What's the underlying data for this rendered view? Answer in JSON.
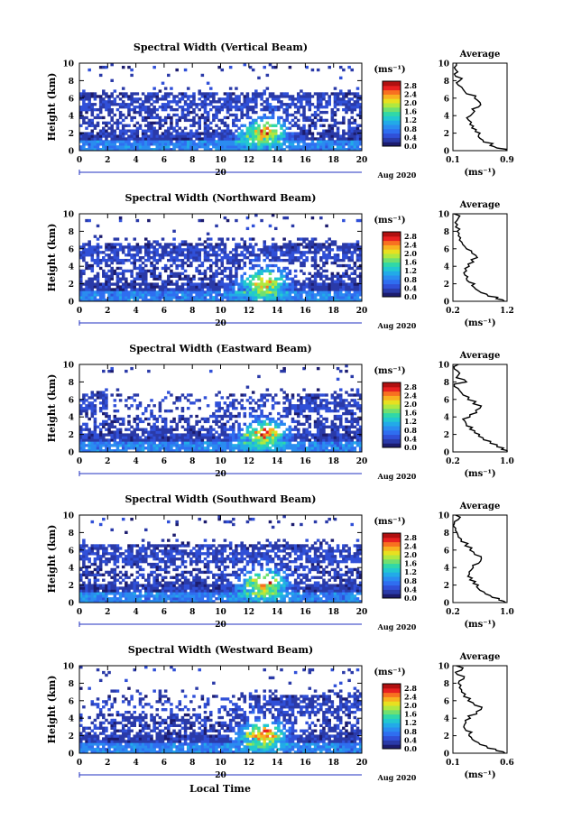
{
  "figure": {
    "xlabel": "Local Time",
    "date_label": "Aug 2020",
    "day_label": "20",
    "unit_label": "(ms⁻¹)",
    "avg_title": "Average",
    "avg_xlabel": "(ms⁻¹)",
    "ylabel": "Height (km)",
    "colors": [
      "#1c1c6e",
      "#2a3aa8",
      "#3050d8",
      "#2f6ef0",
      "#2a8cf0",
      "#22aae8",
      "#22c8d0",
      "#30d8a8",
      "#70e070",
      "#b0e840",
      "#e8e020",
      "#f8b020",
      "#f87020",
      "#e82020",
      "#b01010"
    ]
  },
  "chart_data": [
    {
      "type": "heatmap",
      "title": "Spectral Width (Vertical Beam)",
      "ylabel": "Height (km)",
      "xlabel": "Local Time",
      "xlim": [
        0,
        20
      ],
      "ylim": [
        0,
        10
      ],
      "xticks": [
        "0",
        "2",
        "4",
        "6",
        "8",
        "10",
        "12",
        "14",
        "16",
        "18",
        "20"
      ],
      "yticks": [
        "0",
        "2",
        "4",
        "6",
        "8",
        "10"
      ],
      "colorbar_ticks": [
        "0.0",
        "0.4",
        "0.8",
        "1.2",
        "1.6",
        "2.0",
        "2.4",
        "2.8"
      ],
      "colorbar_range": [
        0,
        3.0
      ],
      "avg_profile": {
        "xlim": [
          0.1,
          0.9
        ],
        "xticks": [
          "0.1",
          "0.9"
        ],
        "heights": [
          0,
          0.3,
          0.6,
          1,
          1.4,
          1.8,
          2.2,
          2.6,
          3,
          3.5,
          4,
          4.5,
          5,
          5.5,
          6,
          6.5,
          7,
          7.5,
          8,
          8.5,
          9,
          9.5,
          10
        ],
        "values": [
          0.88,
          0.75,
          0.65,
          0.55,
          0.5,
          0.48,
          0.43,
          0.38,
          0.35,
          0.33,
          0.36,
          0.42,
          0.48,
          0.5,
          0.42,
          0.3,
          0.25,
          0.18,
          0.2,
          0.14,
          0.17,
          0.12,
          0.15
        ]
      }
    },
    {
      "type": "heatmap",
      "title": "Spectral Width (Northward Beam)",
      "ylabel": "Height (km)",
      "xlabel": "Local Time",
      "xlim": [
        0,
        20
      ],
      "ylim": [
        0,
        10
      ],
      "xticks": [
        "0",
        "2",
        "4",
        "6",
        "8",
        "10",
        "12",
        "14",
        "16",
        "18",
        "20"
      ],
      "yticks": [
        "0",
        "2",
        "4",
        "6",
        "8",
        "10"
      ],
      "colorbar_ticks": [
        "0.0",
        "0.4",
        "0.8",
        "1.2",
        "1.6",
        "2.0",
        "2.4",
        "2.8"
      ],
      "colorbar_range": [
        0,
        3.0
      ],
      "avg_profile": {
        "xlim": [
          0.2,
          1.2
        ],
        "xticks": [
          "0.2",
          "1.2"
        ],
        "heights": [
          0,
          0.3,
          0.6,
          1,
          1.4,
          1.8,
          2.2,
          2.6,
          3,
          3.5,
          4,
          4.5,
          5,
          5.5,
          6,
          6.5,
          7,
          7.5,
          8,
          8.5,
          9,
          9.5,
          10
        ],
        "values": [
          1.15,
          1.0,
          0.85,
          0.72,
          0.62,
          0.55,
          0.5,
          0.45,
          0.42,
          0.45,
          0.5,
          0.58,
          0.65,
          0.55,
          0.45,
          0.38,
          0.32,
          0.3,
          0.28,
          0.25,
          0.24,
          0.3,
          0.22
        ]
      }
    },
    {
      "type": "heatmap",
      "title": "Spectral Width (Eastward Beam)",
      "ylabel": "Height (km)",
      "xlabel": "Local Time",
      "xlim": [
        0,
        20
      ],
      "ylim": [
        0,
        10
      ],
      "xticks": [
        "0",
        "2",
        "4",
        "6",
        "8",
        "10",
        "12",
        "14",
        "16",
        "18",
        "20"
      ],
      "yticks": [
        "0",
        "2",
        "4",
        "6",
        "8",
        "10"
      ],
      "colorbar_ticks": [
        "0.0",
        "0.4",
        "0.8",
        "1.2",
        "1.6",
        "2.0",
        "2.4",
        "2.8"
      ],
      "colorbar_range": [
        0,
        3.0
      ],
      "avg_profile": {
        "xlim": [
          0.2,
          1.0
        ],
        "xticks": [
          "0.2",
          "1.0"
        ],
        "heights": [
          0,
          0.3,
          0.6,
          1,
          1.4,
          1.8,
          2.2,
          2.6,
          3,
          3.5,
          4,
          4.5,
          5,
          5.5,
          6,
          6.5,
          7,
          7.5,
          8,
          8.5,
          9,
          9.5,
          10
        ],
        "values": [
          1.0,
          0.92,
          0.85,
          0.75,
          0.65,
          0.58,
          0.52,
          0.45,
          0.4,
          0.38,
          0.45,
          0.55,
          0.6,
          0.5,
          0.42,
          0.35,
          0.3,
          0.22,
          0.4,
          0.25,
          0.3,
          0.22,
          0.28
        ]
      }
    },
    {
      "type": "heatmap",
      "title": "Spectral Width (Southward Beam)",
      "ylabel": "Height (km)",
      "xlabel": "Local Time",
      "xlim": [
        0,
        20
      ],
      "ylim": [
        0,
        10
      ],
      "xticks": [
        "0",
        "2",
        "4",
        "6",
        "8",
        "10",
        "12",
        "14",
        "16",
        "18",
        "20"
      ],
      "yticks": [
        "0",
        "2",
        "4",
        "6",
        "8",
        "10"
      ],
      "colorbar_ticks": [
        "0.0",
        "0.4",
        "0.8",
        "1.2",
        "1.6",
        "2.0",
        "2.4",
        "2.8"
      ],
      "colorbar_range": [
        0,
        3.0
      ],
      "avg_profile": {
        "xlim": [
          0.2,
          1.0
        ],
        "xticks": [
          "0.2",
          "1.0"
        ],
        "heights": [
          0,
          0.3,
          0.6,
          1,
          1.4,
          1.8,
          2.2,
          2.6,
          3,
          3.5,
          4,
          4.5,
          5,
          5.5,
          6,
          6.5,
          7,
          7.5,
          8,
          8.5,
          9,
          9.5,
          10
        ],
        "values": [
          0.98,
          0.88,
          0.78,
          0.68,
          0.6,
          0.55,
          0.5,
          0.45,
          0.42,
          0.44,
          0.5,
          0.58,
          0.62,
          0.52,
          0.45,
          0.38,
          0.32,
          0.28,
          0.26,
          0.24,
          0.22,
          0.28,
          0.24
        ]
      }
    },
    {
      "type": "heatmap",
      "title": "Spectral Width (Westward Beam)",
      "ylabel": "Height (km)",
      "xlabel": "Local Time",
      "xlim": [
        0,
        20
      ],
      "ylim": [
        0,
        10
      ],
      "xticks": [
        "0",
        "2",
        "4",
        "6",
        "8",
        "10",
        "12",
        "14",
        "16",
        "18",
        "20"
      ],
      "yticks": [
        "0",
        "2",
        "4",
        "6",
        "8",
        "10"
      ],
      "colorbar_ticks": [
        "0.0",
        "0.4",
        "0.8",
        "1.2",
        "1.6",
        "2.0",
        "2.4",
        "2.8"
      ],
      "colorbar_range": [
        0,
        3.0
      ],
      "avg_profile": {
        "xlim": [
          0.1,
          0.6
        ],
        "xticks": [
          "0.1",
          "0.6"
        ],
        "heights": [
          0,
          0.3,
          0.6,
          1,
          1.4,
          1.8,
          2.2,
          2.6,
          3,
          3.5,
          4,
          4.5,
          5,
          5.5,
          6,
          6.5,
          7,
          7.5,
          8,
          8.5,
          9,
          9.5,
          10
        ],
        "values": [
          0.58,
          0.5,
          0.42,
          0.35,
          0.3,
          0.27,
          0.25,
          0.22,
          0.2,
          0.22,
          0.26,
          0.32,
          0.36,
          0.3,
          0.24,
          0.2,
          0.18,
          0.16,
          0.15,
          0.2,
          0.14,
          0.18,
          0.13
        ]
      }
    }
  ]
}
